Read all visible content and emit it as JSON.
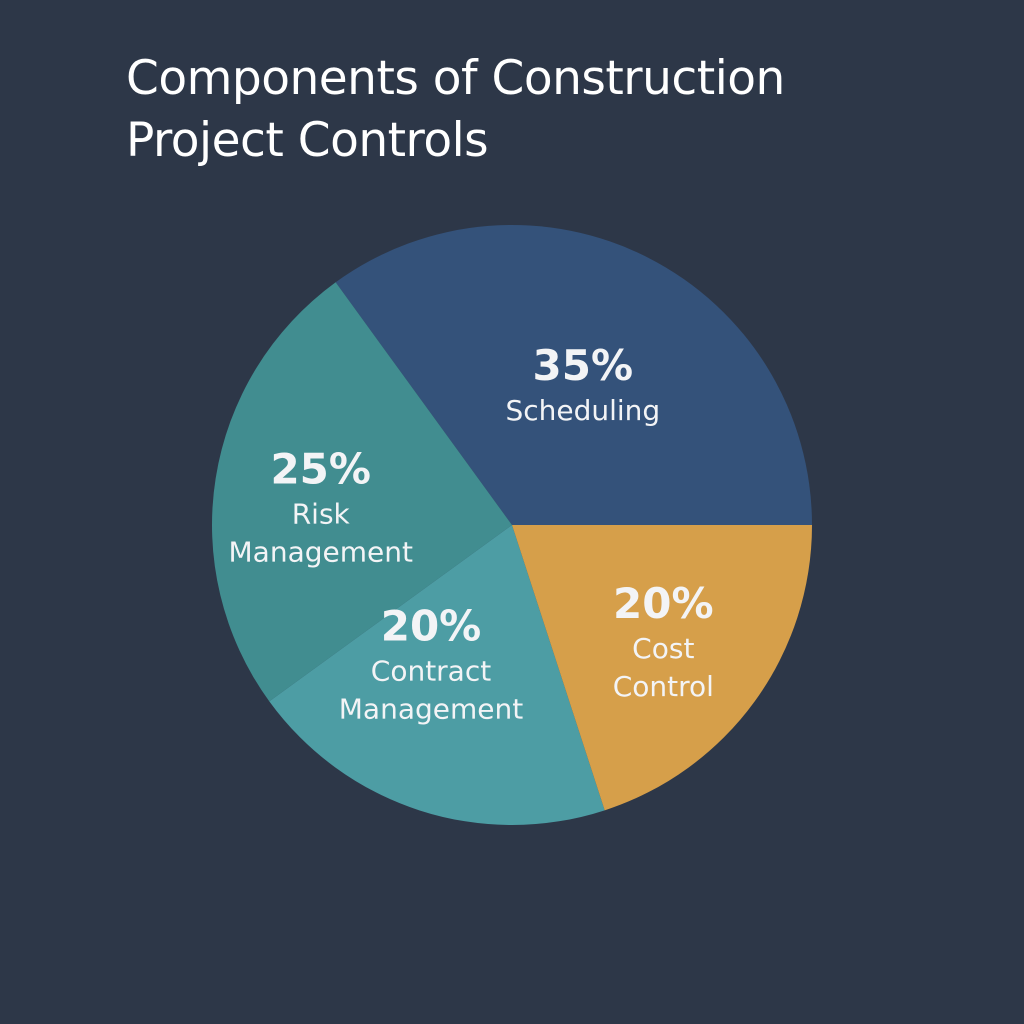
{
  "chart_data": {
    "type": "pie",
    "title": "Components of Construction Project Controls",
    "slices": [
      {
        "label": "Scheduling",
        "label_lines": [
          "Scheduling"
        ],
        "value": 35,
        "value_label": "35%",
        "color": "#34527a"
      },
      {
        "label": "Risk Management",
        "label_lines": [
          "Risk",
          "Management"
        ],
        "value": 25,
        "value_label": "25%",
        "color": "#418d90"
      },
      {
        "label": "Contract Management",
        "label_lines": [
          "Contract",
          "Management"
        ],
        "value": 20,
        "value_label": "20%",
        "color": "#4d9da4"
      },
      {
        "label": "Cost Control",
        "label_lines": [
          "Cost",
          "Control"
        ],
        "value": 20,
        "value_label": "20%",
        "color": "#d69f4a"
      }
    ]
  }
}
